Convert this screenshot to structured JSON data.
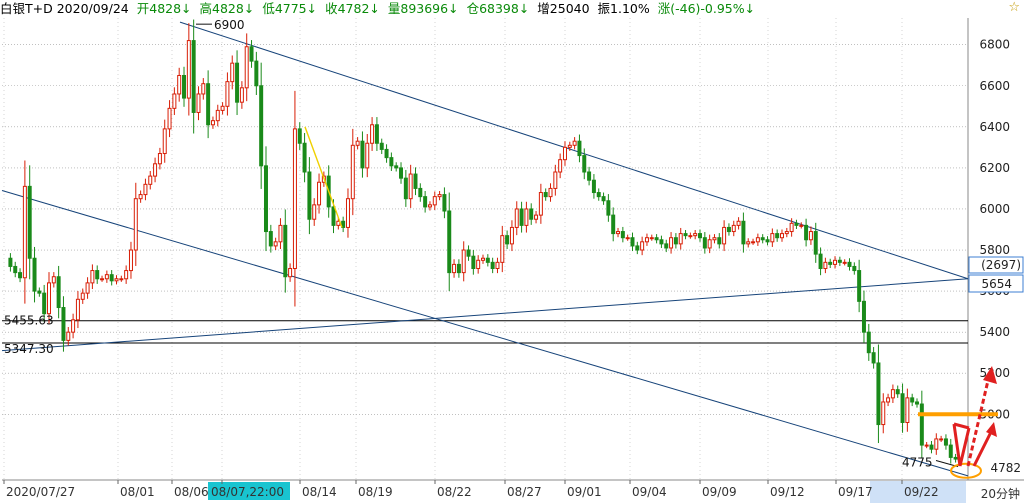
{
  "header": {
    "title": "白银T+D 2020/09/24",
    "open": "开4828↓",
    "high": "高4828↓",
    "low": "低4775↓",
    "close": "收4782↓",
    "volume": "量893696↓",
    "position": "仓68398↓",
    "increase": "增25040",
    "amplitude": "振1.10%",
    "change": "涨(-46)-0.95%↓"
  },
  "colors": {
    "up": "#d81e06",
    "down": "#1a8a1a",
    "trend": "#17447a",
    "accent": "#ff9f00",
    "arrow": "#e02020"
  },
  "icons": {
    "top_right": "star-icon"
  },
  "chart_data": {
    "type": "candlestick",
    "ylim": [
      4680,
      6930
    ],
    "yticks": [
      5000,
      5200,
      5400,
      5600,
      5800,
      6000,
      6200,
      6400,
      6600,
      6800
    ],
    "ytick_labels": [
      "",
      "5000",
      "5200",
      "5400",
      "5600",
      "5800",
      "6000",
      "6200",
      "6400",
      "6600",
      "6800"
    ],
    "xtick_labels": [
      "2020/07/27",
      "08/01",
      "08/06",
      "08/07,22:00",
      "08/14",
      "08/19",
      "08/22",
      "08/27",
      "09/01",
      "09/04",
      "09/09",
      "09/12",
      "09/17",
      "09/22"
    ],
    "closes": [
      5720,
      5690,
      5665,
      6110,
      5760,
      5600,
      5590,
      5490,
      5640,
      5670,
      5520,
      5360,
      5400,
      5460,
      5560,
      5590,
      5640,
      5700,
      5660,
      5660,
      5680,
      5650,
      5660,
      5660,
      5700,
      5800,
      6050,
      6070,
      6120,
      6160,
      6220,
      6270,
      6390,
      6490,
      6560,
      6650,
      6540,
      6820,
      6470,
      6560,
      6610,
      6410,
      6430,
      6480,
      6500,
      6620,
      6710,
      6520,
      6590,
      6790,
      6720,
      6600,
      6210,
      5890,
      5820,
      5840,
      5920,
      5670,
      5710,
      6390,
      6320,
      6180,
      5950,
      6020,
      6130,
      6160,
      6010,
      5920,
      5940,
      5910,
      6050,
      6310,
      6330,
      6200,
      6320,
      6410,
      6320,
      6290,
      6250,
      6210,
      6200,
      6150,
      6050,
      6170,
      6100,
      6060,
      6010,
      6020,
      6060,
      6070,
      5990,
      5690,
      5730,
      5690,
      5800,
      5770,
      5710,
      5750,
      5760,
      5740,
      5710,
      5740,
      5870,
      5830,
      5910,
      6000,
      5920,
      6000,
      5950,
      5970,
      6080,
      6060,
      6100,
      6180,
      6240,
      6300,
      6310,
      6330,
      6260,
      6180,
      6140,
      6080,
      6060,
      6040,
      5970,
      5880,
      5890,
      5860,
      5860,
      5820,
      5800,
      5840,
      5860,
      5860,
      5850,
      5830,
      5810,
      5860,
      5830,
      5880,
      5870,
      5870,
      5880,
      5860,
      5810,
      5850,
      5860,
      5830,
      5910,
      5890,
      5920,
      5940,
      5830,
      5840,
      5840,
      5860,
      5850,
      5840,
      5880,
      5860,
      5880,
      5890,
      5930,
      5920,
      5920,
      5850,
      5890,
      5780,
      5710,
      5740,
      5730,
      5750,
      5740,
      5740,
      5720,
      5700,
      5550,
      5400,
      5300,
      5250,
      4950,
      5060,
      5080,
      5120,
      5100,
      4960,
      5080,
      5060,
      5050,
      4850,
      4850,
      4830,
      4880,
      4880,
      4850,
      4790,
      4782
    ],
    "price_labels": [
      "6900",
      "5455.63",
      "5347.30",
      "4775",
      "4782",
      "(2697)",
      "5654"
    ],
    "annotation": "20分钟"
  }
}
